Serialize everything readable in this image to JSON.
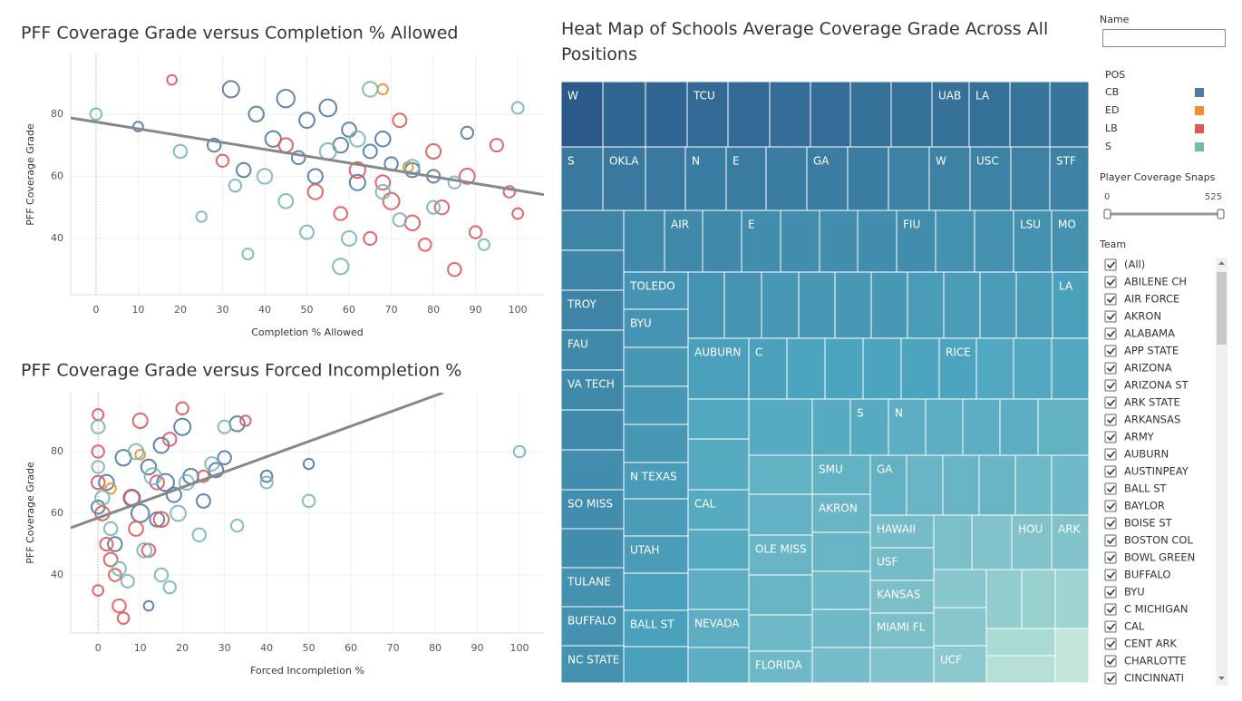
{
  "chart_data": [
    {
      "type": "scatter",
      "title": "PFF Coverage Grade versus Completion % Allowed",
      "x_label": "Completion % Allowed",
      "y_label": "PFF Coverage Grade",
      "xlim": [
        -6,
        106.2
      ],
      "ylim": [
        21.9,
        99.2
      ],
      "xticks": [
        0,
        10,
        20,
        30,
        40,
        50,
        60,
        70,
        80,
        90,
        100
      ],
      "yticks": [
        40,
        60,
        80
      ],
      "grid": true,
      "trend": {
        "x": [
          -6,
          106.2
        ],
        "y": [
          78.8,
          54.1
        ],
        "color": "#888888"
      },
      "series": [
        {
          "name": "CB",
          "color": "#4e79a7",
          "x": [
            10,
            28,
            32,
            35,
            38,
            42,
            45,
            48,
            50,
            52,
            55,
            58,
            60,
            62,
            65,
            68,
            70,
            75,
            80,
            88
          ],
          "values": [
            76,
            70,
            88,
            62,
            80,
            72,
            85,
            66,
            78,
            60,
            82,
            70,
            75,
            58,
            68,
            72,
            64,
            62,
            60,
            74
          ],
          "sizes": [
            60,
            200,
            400,
            250,
            300,
            350,
            500,
            200,
            320,
            280,
            450,
            300,
            260,
            340,
            220,
            300,
            200,
            260,
            180,
            150
          ]
        },
        {
          "name": "ED",
          "color": "#f28e2b",
          "x": [
            68,
            74
          ],
          "values": [
            88,
            63
          ],
          "sizes": [
            80,
            60
          ]
        },
        {
          "name": "LB",
          "color": "#e15759",
          "x": [
            18,
            30,
            45,
            52,
            58,
            62,
            65,
            68,
            70,
            72,
            75,
            78,
            80,
            82,
            85,
            88,
            90,
            95,
            98,
            100
          ],
          "values": [
            91,
            65,
            70,
            55,
            48,
            62,
            40,
            58,
            52,
            78,
            45,
            38,
            68,
            50,
            30,
            60,
            42,
            70,
            55,
            48
          ],
          "sizes": [
            60,
            150,
            250,
            300,
            200,
            350,
            180,
            260,
            400,
            220,
            300,
            160,
            280,
            240,
            200,
            320,
            150,
            180,
            120,
            90
          ]
        },
        {
          "name": "S",
          "color": "#76b7b2",
          "x": [
            0,
            20,
            25,
            33,
            36,
            40,
            45,
            50,
            55,
            58,
            60,
            62,
            65,
            68,
            72,
            75,
            80,
            85,
            92,
            100
          ],
          "values": [
            80,
            68,
            47,
            57,
            35,
            60,
            52,
            42,
            68,
            31,
            40,
            72,
            88,
            55,
            46,
            63,
            50,
            58,
            38,
            82
          ],
          "sizes": [
            120,
            200,
            80,
            150,
            100,
            300,
            260,
            220,
            400,
            350,
            280,
            320,
            300,
            240,
            200,
            260,
            180,
            150,
            100,
            130
          ]
        }
      ]
    },
    {
      "type": "scatter",
      "title": "PFF Coverage Grade versus Forced Incompletion %",
      "x_label": "Forced Incompletion %",
      "y_label": "PFF Coverage Grade",
      "xlim": [
        -6.5,
        105.8
      ],
      "ylim": [
        21.2,
        99.1
      ],
      "xticks": [
        0,
        10,
        20,
        30,
        40,
        50,
        60,
        70,
        80,
        90,
        100
      ],
      "yticks": [
        40,
        60,
        80
      ],
      "grid": true,
      "trend": {
        "x": [
          -6.5,
          81.9
        ],
        "y": [
          55.3,
          99.1
        ],
        "color": "#888888"
      },
      "series": [
        {
          "name": "CB",
          "color": "#4e79a7",
          "x": [
            0,
            2,
            4,
            6,
            8,
            10,
            12,
            14,
            15,
            16,
            18,
            20,
            22,
            25,
            28,
            30,
            33,
            40,
            50,
            12
          ],
          "values": [
            62,
            70,
            50,
            78,
            65,
            60,
            75,
            58,
            82,
            70,
            66,
            88,
            72,
            64,
            74,
            78,
            89,
            72,
            76,
            30
          ],
          "sizes": [
            200,
            300,
            250,
            350,
            400,
            500,
            300,
            260,
            320,
            450,
            280,
            400,
            300,
            220,
            260,
            200,
            300,
            120,
            80,
            60
          ]
        },
        {
          "name": "ED",
          "color": "#f28e2b",
          "x": [
            3,
            10
          ],
          "values": [
            68,
            79
          ],
          "sizes": [
            80,
            60
          ]
        },
        {
          "name": "LB",
          "color": "#e15759",
          "x": [
            0,
            0,
            0,
            1,
            2,
            3,
            4,
            5,
            6,
            8,
            9,
            10,
            12,
            14,
            15,
            17,
            20,
            25,
            35,
            0
          ],
          "values": [
            92,
            80,
            70,
            60,
            50,
            45,
            40,
            30,
            26,
            65,
            55,
            90,
            48,
            70,
            58,
            84,
            94,
            72,
            90,
            35
          ],
          "sizes": [
            100,
            150,
            200,
            250,
            180,
            220,
            160,
            200,
            120,
            300,
            260,
            280,
            200,
            240,
            300,
            200,
            150,
            120,
            80,
            90
          ]
        },
        {
          "name": "S",
          "color": "#76b7b2",
          "x": [
            0,
            0,
            1,
            3,
            5,
            7,
            9,
            11,
            13,
            15,
            17,
            19,
            21,
            24,
            27,
            30,
            33,
            40,
            50,
            100
          ],
          "values": [
            88,
            75,
            65,
            55,
            42,
            38,
            80,
            48,
            72,
            40,
            36,
            60,
            70,
            53,
            76,
            88,
            56,
            70,
            64,
            80
          ],
          "sizes": [
            200,
            150,
            250,
            200,
            220,
            180,
            300,
            260,
            400,
            200,
            150,
            320,
            280,
            200,
            220,
            180,
            150,
            140,
            160,
            120
          ]
        }
      ]
    },
    {
      "type": "treemap",
      "title": "Heat Map of Schools Average Coverage Grade Across All Positions",
      "color_scale": [
        "#c2e7da",
        "#4ea6bf",
        "#2b5a8a"
      ],
      "cells": [
        {
          "label": "W",
          "value": 84
        },
        {
          "label": null,
          "value": 81
        },
        {
          "label": null,
          "value": 81
        },
        {
          "label": "TCU",
          "value": 80
        },
        {
          "label": null,
          "value": 80
        },
        {
          "label": null,
          "value": 79
        },
        {
          "label": null,
          "value": 79
        },
        {
          "label": null,
          "value": 78
        },
        {
          "label": null,
          "value": 78
        },
        {
          "label": "UAB",
          "value": 78
        },
        {
          "label": "LA",
          "value": 78
        },
        {
          "label": null,
          "value": 77
        },
        {
          "label": null,
          "value": 77
        },
        {
          "label": "S",
          "value": 76
        },
        {
          "label": "OKLA",
          "value": 76
        },
        {
          "label": null,
          "value": 76
        },
        {
          "label": "N",
          "value": 75
        },
        {
          "label": "E",
          "value": 75
        },
        {
          "label": null,
          "value": 75
        },
        {
          "label": "GA",
          "value": 75
        },
        {
          "label": null,
          "value": 75
        },
        {
          "label": null,
          "value": 74
        },
        {
          "label": "W",
          "value": 74
        },
        {
          "label": "USC",
          "value": 74
        },
        {
          "label": null,
          "value": 74
        },
        {
          "label": "STF",
          "value": 74
        },
        {
          "label": null,
          "value": 73
        },
        {
          "label": null,
          "value": 73
        },
        {
          "label": "TROY",
          "value": 73
        },
        {
          "label": "FAU",
          "value": 72
        },
        {
          "label": "VA TECH",
          "value": 72
        },
        {
          "label": null,
          "value": 72
        },
        {
          "label": null,
          "value": 71
        },
        {
          "label": "SO MISS",
          "value": 71
        },
        {
          "label": null,
          "value": 71
        },
        {
          "label": "TULANE",
          "value": 70
        },
        {
          "label": "BUFFALO",
          "value": 70
        },
        {
          "label": "NC STATE",
          "value": 70
        },
        {
          "label": null,
          "value": 72
        },
        {
          "label": "AIR",
          "value": 72
        },
        {
          "label": null,
          "value": 72
        },
        {
          "label": "E",
          "value": 71
        },
        {
          "label": null,
          "value": 71
        },
        {
          "label": null,
          "value": 71
        },
        {
          "label": null,
          "value": 71
        },
        {
          "label": "FIU",
          "value": 71
        },
        {
          "label": null,
          "value": 70
        },
        {
          "label": null,
          "value": 70
        },
        {
          "label": "LSU",
          "value": 70
        },
        {
          "label": "MO",
          "value": 70
        },
        {
          "label": "TOLEDO",
          "value": 69
        },
        {
          "label": "BYU",
          "value": 69
        },
        {
          "label": null,
          "value": 68
        },
        {
          "label": null,
          "value": 68
        },
        {
          "label": null,
          "value": 68
        },
        {
          "label": "N TEXAS",
          "value": 67
        },
        {
          "label": null,
          "value": 67
        },
        {
          "label": "UTAH",
          "value": 67
        },
        {
          "label": null,
          "value": 66
        },
        {
          "label": "BALL ST",
          "value": 66
        },
        {
          "label": null,
          "value": 66
        },
        {
          "label": null,
          "value": 69
        },
        {
          "label": null,
          "value": 69
        },
        {
          "label": null,
          "value": 68
        },
        {
          "label": null,
          "value": 68
        },
        {
          "label": null,
          "value": 68
        },
        {
          "label": null,
          "value": 68
        },
        {
          "label": null,
          "value": 67
        },
        {
          "label": null,
          "value": 67
        },
        {
          "label": null,
          "value": 67
        },
        {
          "label": null,
          "value": 67
        },
        {
          "label": "LA",
          "value": 66
        },
        {
          "label": "AUBURN",
          "value": 66
        },
        {
          "label": "C",
          "value": 66
        },
        {
          "label": null,
          "value": 65
        },
        {
          "label": null,
          "value": 65
        },
        {
          "label": null,
          "value": 65
        },
        {
          "label": null,
          "value": 65
        },
        {
          "label": "RICE",
          "value": 65
        },
        {
          "label": null,
          "value": 64
        },
        {
          "label": null,
          "value": 64
        },
        {
          "label": null,
          "value": 64
        },
        {
          "label": null,
          "value": 64
        },
        {
          "label": null,
          "value": 63
        },
        {
          "label": "CAL",
          "value": 63
        },
        {
          "label": null,
          "value": 63
        },
        {
          "label": null,
          "value": 62
        },
        {
          "label": "NEVADA",
          "value": 62
        },
        {
          "label": null,
          "value": 62
        },
        {
          "label": null,
          "value": 63
        },
        {
          "label": null,
          "value": 63
        },
        {
          "label": "S",
          "value": 63
        },
        {
          "label": "N",
          "value": 62
        },
        {
          "label": null,
          "value": 62
        },
        {
          "label": null,
          "value": 62
        },
        {
          "label": null,
          "value": 62
        },
        {
          "label": null,
          "value": 61
        },
        {
          "label": null,
          "value": 61
        },
        {
          "label": null,
          "value": 61
        },
        {
          "label": "OLE MISS",
          "value": 60
        },
        {
          "label": null,
          "value": 60
        },
        {
          "label": null,
          "value": 59
        },
        {
          "label": "FLORIDA",
          "value": 59
        },
        {
          "label": "SMU",
          "value": 61
        },
        {
          "label": "AKRON",
          "value": 60
        },
        {
          "label": null,
          "value": 60
        },
        {
          "label": null,
          "value": 59
        },
        {
          "label": null,
          "value": 59
        },
        {
          "label": null,
          "value": 58
        },
        {
          "label": "GA",
          "value": 61
        },
        {
          "label": null,
          "value": 60
        },
        {
          "label": null,
          "value": 60
        },
        {
          "label": null,
          "value": 60
        },
        {
          "label": null,
          "value": 59
        },
        {
          "label": null,
          "value": 59
        },
        {
          "label": "HAWAII",
          "value": 58
        },
        {
          "label": "USF",
          "value": 58
        },
        {
          "label": "KANSAS",
          "value": 57
        },
        {
          "label": "MIAMI FL",
          "value": 57
        },
        {
          "label": null,
          "value": 56
        },
        {
          "label": null,
          "value": 57
        },
        {
          "label": null,
          "value": 56
        },
        {
          "label": "HOU",
          "value": 56
        },
        {
          "label": "ARK",
          "value": 56
        },
        {
          "label": null,
          "value": 55
        },
        {
          "label": null,
          "value": 55
        },
        {
          "label": "UCF",
          "value": 54
        },
        {
          "label": null,
          "value": 53
        },
        {
          "label": null,
          "value": 52
        },
        {
          "label": null,
          "value": 51
        },
        {
          "label": null,
          "value": 49
        },
        {
          "label": null,
          "value": 47
        },
        {
          "label": null,
          "value": 45
        }
      ]
    }
  ],
  "filters": {
    "name_label": "Name",
    "legend_title": "POS",
    "slider": {
      "title": "Player Coverage Snaps",
      "min": 0,
      "max": 525
    },
    "team": {
      "title": "Team",
      "options": [
        "(All)",
        "ABILENE CH",
        "AIR FORCE",
        "AKRON",
        "ALABAMA",
        "APP STATE",
        "ARIZONA",
        "ARIZONA ST",
        "ARK STATE",
        "ARKANSAS",
        "ARMY",
        "AUBURN",
        "AUSTINPEAY",
        "BALL ST",
        "BAYLOR",
        "BOISE ST",
        "BOSTON COL",
        "BOWL GREEN",
        "BUFFALO",
        "BYU",
        "C MICHIGAN",
        "CAL",
        "CENT ARK",
        "CHARLOTTE",
        "CINCINNATI"
      ]
    }
  }
}
